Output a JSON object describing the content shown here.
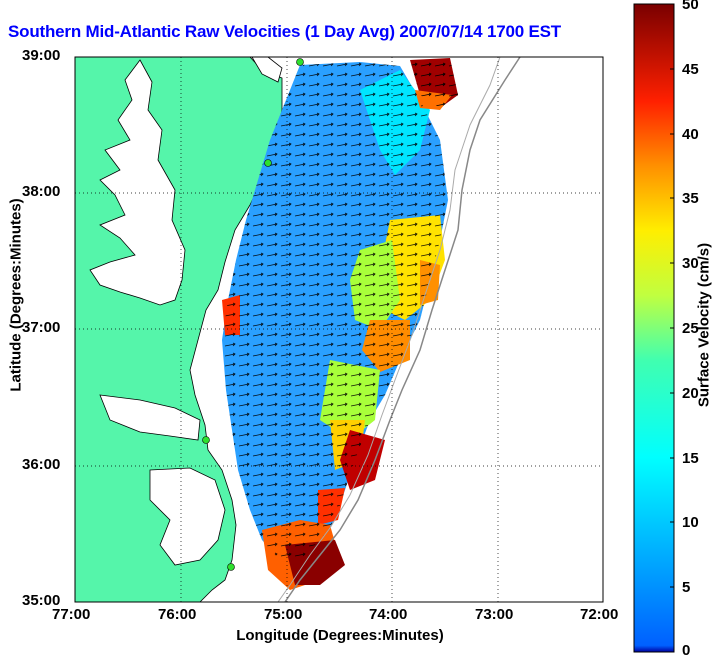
{
  "title": "Southern Mid-Atlantic Raw Velocities (1 Day Avg) 2007/07/14 1700 EST",
  "x_axis": {
    "label": "Longitude (Degrees:Minutes)",
    "ticks": [
      "77:00",
      "76:00",
      "75:00",
      "74:00",
      "73:00",
      "72:00"
    ]
  },
  "y_axis": {
    "label": "Latitude (Degrees:Minutes)",
    "ticks": [
      "39:00",
      "38:00",
      "37:00",
      "36:00",
      "35:00"
    ]
  },
  "colorbar": {
    "label": "Surface Velocity (cm/s)",
    "ticks": [
      "50",
      "45",
      "40",
      "35",
      "30",
      "25",
      "20",
      "15",
      "10",
      "5",
      "0"
    ],
    "range": [
      0,
      50
    ],
    "colormap": "jet"
  },
  "colors": {
    "title": "#0000ff",
    "land": "#55f5aa",
    "ocean": "#ffffff"
  },
  "map": {
    "lon_range": [
      -77,
      -72
    ],
    "lat_range": [
      35,
      39
    ],
    "grid": true
  }
}
